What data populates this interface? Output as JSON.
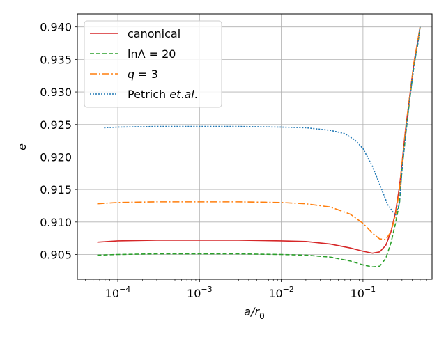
{
  "chart_data": {
    "type": "line",
    "title": "",
    "xlabel": "a/r",
    "xlabel_sub": "0",
    "ylabel": "e",
    "xscale": "log",
    "xlim": [
      3.2e-05,
      0.7
    ],
    "ylim": [
      0.9012,
      0.942
    ],
    "grid": true,
    "legend_position": "upper left",
    "x_ticks": [
      {
        "value": 0.0001,
        "base": "10",
        "exp": "−4"
      },
      {
        "value": 0.001,
        "base": "10",
        "exp": "−3"
      },
      {
        "value": 0.01,
        "base": "10",
        "exp": "−2"
      },
      {
        "value": 0.1,
        "base": "10",
        "exp": "−1"
      }
    ],
    "y_ticks": [
      {
        "value": 0.905,
        "label": "0.905"
      },
      {
        "value": 0.91,
        "label": "0.910"
      },
      {
        "value": 0.915,
        "label": "0.915"
      },
      {
        "value": 0.92,
        "label": "0.920"
      },
      {
        "value": 0.925,
        "label": "0.925"
      },
      {
        "value": 0.93,
        "label": "0.930"
      },
      {
        "value": 0.935,
        "label": "0.935"
      },
      {
        "value": 0.94,
        "label": "0.940"
      }
    ],
    "series": [
      {
        "name": "canonical",
        "legend_parts": [
          {
            "t": "canonical",
            "italic": false
          }
        ],
        "color": "#d62728",
        "dash": "",
        "x": [
          5.6e-05,
          0.0001,
          0.0003,
          0.001,
          0.003,
          0.01,
          0.02,
          0.04,
          0.07,
          0.1,
          0.13,
          0.16,
          0.19,
          0.22,
          0.25,
          0.28,
          0.3,
          0.33,
          0.37,
          0.42,
          0.47,
          0.5
        ],
        "y": [
          0.9069,
          0.9071,
          0.9072,
          0.9072,
          0.9072,
          0.9071,
          0.907,
          0.9066,
          0.906,
          0.9055,
          0.9052,
          0.9054,
          0.9064,
          0.9085,
          0.9115,
          0.9155,
          0.919,
          0.924,
          0.929,
          0.9345,
          0.938,
          0.94
        ]
      },
      {
        "name": "ln Λ = 20",
        "legend_parts": [
          {
            "t": "ln",
            "italic": false
          },
          {
            "t": "Λ",
            "italic": false
          },
          {
            "t": " = 20",
            "italic": false
          }
        ],
        "color": "#2ca02c",
        "dash": "6,3",
        "x": [
          5.6e-05,
          0.0001,
          0.0003,
          0.001,
          0.003,
          0.01,
          0.02,
          0.04,
          0.07,
          0.1,
          0.13,
          0.16,
          0.19,
          0.22,
          0.25,
          0.28,
          0.3,
          0.33,
          0.37,
          0.42,
          0.47,
          0.5
        ],
        "y": [
          0.9049,
          0.905,
          0.9051,
          0.9051,
          0.9051,
          0.905,
          0.9049,
          0.9046,
          0.904,
          0.9034,
          0.9031,
          0.9032,
          0.9044,
          0.9068,
          0.9098,
          0.913,
          0.918,
          0.923,
          0.9285,
          0.934,
          0.9375,
          0.94
        ]
      },
      {
        "name": "q = 3",
        "legend_parts": [
          {
            "t": "q",
            "italic": true
          },
          {
            "t": " = 3",
            "italic": false
          }
        ],
        "color": "#ff7f0e",
        "dash": "10,3,2,3",
        "x": [
          5.6e-05,
          0.0001,
          0.0003,
          0.001,
          0.003,
          0.01,
          0.02,
          0.04,
          0.07,
          0.1,
          0.13,
          0.16,
          0.19,
          0.22,
          0.25,
          0.28,
          0.3,
          0.33,
          0.37,
          0.42,
          0.47,
          0.5
        ],
        "y": [
          0.9128,
          0.913,
          0.9131,
          0.9131,
          0.9131,
          0.913,
          0.9128,
          0.9123,
          0.9112,
          0.9098,
          0.9083,
          0.9074,
          0.9073,
          0.9085,
          0.911,
          0.915,
          0.919,
          0.924,
          0.929,
          0.9345,
          0.938,
          0.94
        ]
      },
      {
        "name": "Petrich et. al.",
        "legend_parts": [
          {
            "t": "Petrich ",
            "italic": false
          },
          {
            "t": "et",
            "italic": true
          },
          {
            "t": ".",
            "italic": false
          },
          {
            "t": "al",
            "italic": true
          },
          {
            "t": ".",
            "italic": false
          }
        ],
        "color": "#1f77b4",
        "dash": "2,2",
        "x": [
          6.8e-05,
          0.0001,
          0.0003,
          0.001,
          0.003,
          0.01,
          0.02,
          0.04,
          0.06,
          0.08,
          0.1,
          0.13,
          0.16,
          0.2,
          0.25,
          0.28,
          0.3,
          0.33,
          0.37,
          0.42,
          0.47,
          0.5
        ],
        "y": [
          0.9245,
          0.9246,
          0.9247,
          0.9247,
          0.9247,
          0.9246,
          0.9245,
          0.9241,
          0.9236,
          0.9226,
          0.9213,
          0.9186,
          0.9158,
          0.9127,
          0.911,
          0.913,
          0.918,
          0.923,
          0.9285,
          0.934,
          0.9375,
          0.94
        ]
      }
    ]
  }
}
